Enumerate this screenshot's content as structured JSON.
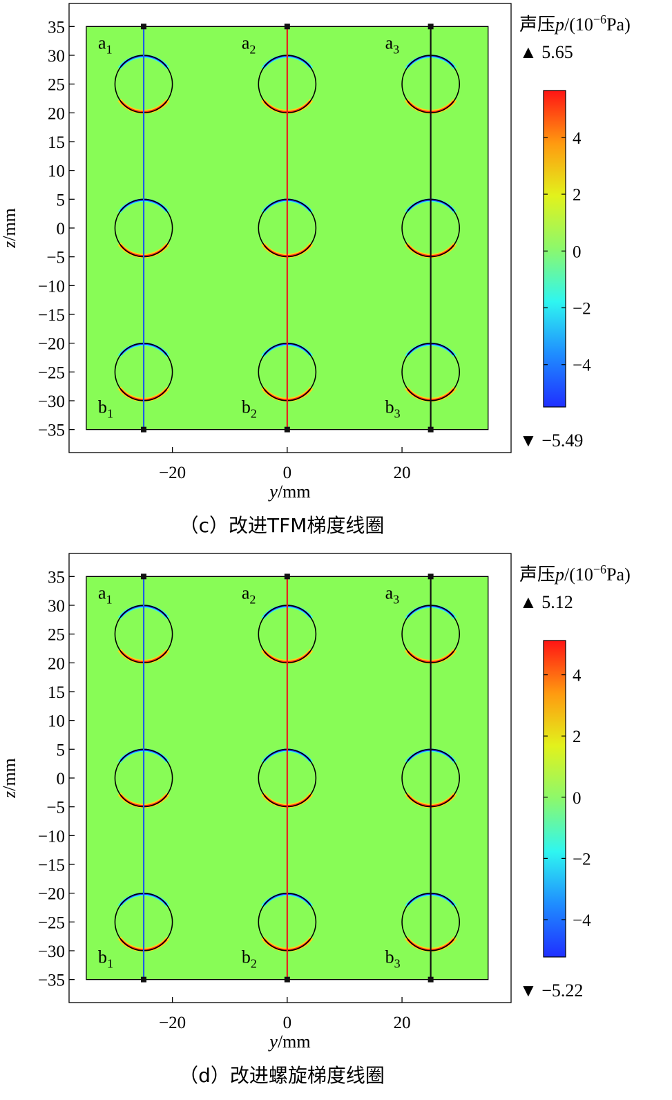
{
  "chart_data": [
    {
      "type": "heatmap",
      "caption": "（c）改进TFM梯度线圈",
      "xlabel_var": "y",
      "xlabel_unit": "/mm",
      "ylabel_var": "z",
      "ylabel_unit": "/mm",
      "xlim": [
        -38,
        39
      ],
      "ylim": [
        -39,
        39
      ],
      "domain": {
        "y": [
          -35,
          35
        ],
        "z": [
          -35,
          35
        ]
      },
      "xticks": [
        -20,
        0,
        20
      ],
      "yticks": [
        35,
        30,
        25,
        20,
        15,
        10,
        5,
        0,
        -5,
        -10,
        -15,
        -20,
        -25,
        -30,
        -35
      ],
      "background_value": 0,
      "circles": {
        "y": [
          -25,
          0,
          25
        ],
        "z": [
          25,
          0,
          -25
        ],
        "radius": 5
      },
      "lines": [
        {
          "y": -25,
          "color": "#1f5ee8",
          "top_label": "a",
          "top_sub": "1",
          "bottom_label": "b",
          "bottom_sub": "1"
        },
        {
          "y": 0,
          "color": "#e8201f",
          "top_label": "a",
          "top_sub": "2",
          "bottom_label": "b",
          "bottom_sub": "2"
        },
        {
          "y": 25,
          "color": "#111111",
          "top_label": "a",
          "top_sub": "3",
          "bottom_label": "b",
          "bottom_sub": "3"
        }
      ],
      "colorbar": {
        "title_prefix": "声压",
        "title_var": "p",
        "title_unit": "/(10",
        "title_exp": "−6",
        "title_suffix": "Pa)",
        "max_label": "▲ 5.65",
        "min_label": "▼ −5.49",
        "range": [
          -5.49,
          5.65
        ],
        "ticks": [
          4,
          2,
          0,
          -2,
          -4
        ],
        "tick_labels": [
          "4",
          "2",
          "0",
          "−2",
          "−4"
        ]
      }
    },
    {
      "type": "heatmap",
      "caption": "（d）改进螺旋梯度线圈",
      "xlabel_var": "y",
      "xlabel_unit": "/mm",
      "ylabel_var": "z",
      "ylabel_unit": "/mm",
      "xlim": [
        -38,
        39
      ],
      "ylim": [
        -39,
        39
      ],
      "domain": {
        "y": [
          -35,
          35
        ],
        "z": [
          -35,
          35
        ]
      },
      "xticks": [
        -20,
        0,
        20
      ],
      "yticks": [
        35,
        30,
        25,
        20,
        15,
        10,
        5,
        0,
        -5,
        -10,
        -15,
        -20,
        -25,
        -30,
        -35
      ],
      "background_value": 0,
      "circles": {
        "y": [
          -25,
          0,
          25
        ],
        "z": [
          25,
          0,
          -25
        ],
        "radius": 5
      },
      "lines": [
        {
          "y": -25,
          "color": "#1f5ee8",
          "top_label": "a",
          "top_sub": "1",
          "bottom_label": "b",
          "bottom_sub": "1"
        },
        {
          "y": 0,
          "color": "#e8201f",
          "top_label": "a",
          "top_sub": "2",
          "bottom_label": "b",
          "bottom_sub": "2"
        },
        {
          "y": 25,
          "color": "#111111",
          "top_label": "a",
          "top_sub": "3",
          "bottom_label": "b",
          "bottom_sub": "3"
        }
      ],
      "colorbar": {
        "title_prefix": "声压",
        "title_var": "p",
        "title_unit": "/(10",
        "title_exp": "−6",
        "title_suffix": "Pa)",
        "max_label": "▲ 5.12",
        "min_label": "▼ −5.22",
        "range": [
          -5.22,
          5.12
        ],
        "ticks": [
          4,
          2,
          0,
          -2,
          -4
        ],
        "tick_labels": [
          "4",
          "2",
          "0",
          "−2",
          "−4"
        ]
      }
    }
  ],
  "colors": {
    "field": "#88fc56",
    "frame": "#000000",
    "colormap": [
      "#1f2fff",
      "#1f8dff",
      "#2ff6f0",
      "#8cf86c",
      "#e2f21c",
      "#ff9a10",
      "#ff1414"
    ]
  }
}
